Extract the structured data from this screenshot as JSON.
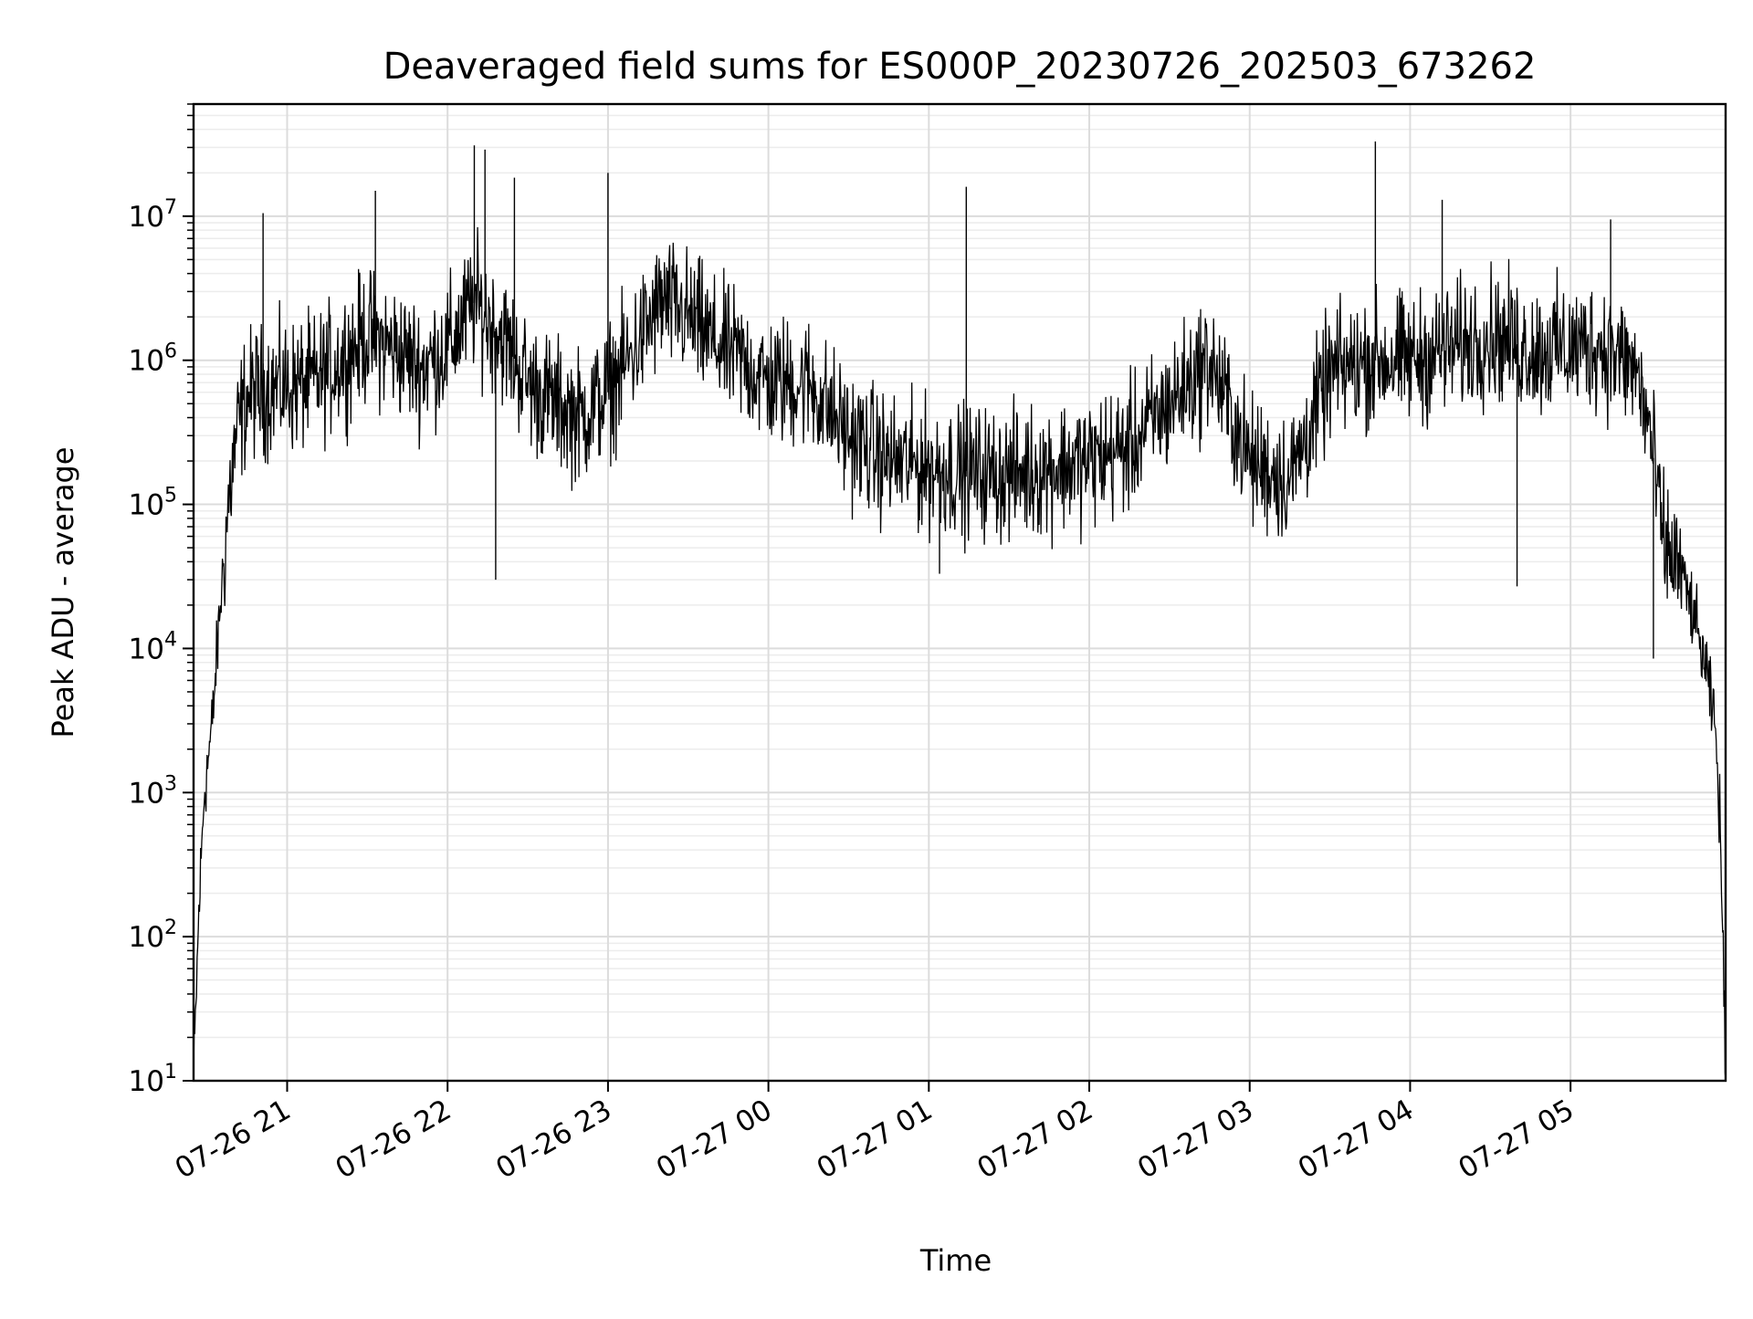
{
  "chart_data": {
    "type": "line",
    "title": "Deaveraged field sums for ES000P_20230726_202503_673262",
    "xlabel": "Time",
    "ylabel": "Peak ADU - average",
    "y_scale": "log",
    "ylim": [
      10,
      60000000
    ],
    "xlim": [
      "2023-07-26 20:25",
      "2023-07-27 05:58"
    ],
    "y_ticks": [
      {
        "value": 10,
        "base": "10",
        "exp": "1"
      },
      {
        "value": 100,
        "base": "10",
        "exp": "2"
      },
      {
        "value": 1000,
        "base": "10",
        "exp": "3"
      },
      {
        "value": 10000,
        "base": "10",
        "exp": "4"
      },
      {
        "value": 100000,
        "base": "10",
        "exp": "5"
      },
      {
        "value": 1000000,
        "base": "10",
        "exp": "6"
      },
      {
        "value": 10000000,
        "base": "10",
        "exp": "7"
      }
    ],
    "x_ticks": [
      {
        "value": "2023-07-26 21:00",
        "label": "07-26 21"
      },
      {
        "value": "2023-07-26 22:00",
        "label": "07-26 22"
      },
      {
        "value": "2023-07-26 23:00",
        "label": "07-26 23"
      },
      {
        "value": "2023-07-27 00:00",
        "label": "07-27 00"
      },
      {
        "value": "2023-07-27 01:00",
        "label": "07-27 01"
      },
      {
        "value": "2023-07-27 02:00",
        "label": "07-27 02"
      },
      {
        "value": "2023-07-27 03:00",
        "label": "07-27 03"
      },
      {
        "value": "2023-07-27 04:00",
        "label": "07-27 04"
      },
      {
        "value": "2023-07-27 05:00",
        "label": "07-27 05"
      }
    ],
    "grid": true,
    "legend": "none",
    "series": [
      {
        "x": [
          "2023-07-26 20:25",
          "2023-07-26 20:27",
          "2023-07-26 20:29",
          "2023-07-26 20:32",
          "2023-07-26 20:35",
          "2023-07-26 20:38",
          "2023-07-26 20:41",
          "2023-07-26 20:44",
          "2023-07-26 20:47",
          "2023-07-26 20:50",
          "2023-07-26 20:55",
          "2023-07-26 21:00",
          "2023-07-26 21:10",
          "2023-07-26 21:20",
          "2023-07-26 21:30",
          "2023-07-26 21:40",
          "2023-07-26 21:50",
          "2023-07-26 22:00",
          "2023-07-26 22:10",
          "2023-07-26 22:20",
          "2023-07-26 22:30",
          "2023-07-26 22:40",
          "2023-07-26 22:50",
          "2023-07-26 23:00",
          "2023-07-26 23:10",
          "2023-07-26 23:20",
          "2023-07-26 23:30",
          "2023-07-26 23:40",
          "2023-07-26 23:50",
          "2023-07-27 00:00",
          "2023-07-27 00:15",
          "2023-07-27 00:30",
          "2023-07-27 00:45",
          "2023-07-27 01:00",
          "2023-07-27 01:15",
          "2023-07-27 01:30",
          "2023-07-27 01:45",
          "2023-07-27 02:00",
          "2023-07-27 02:15",
          "2023-07-27 02:30",
          "2023-07-27 02:45",
          "2023-07-27 03:00",
          "2023-07-27 03:15",
          "2023-07-27 03:30",
          "2023-07-27 03:45",
          "2023-07-27 04:00",
          "2023-07-27 04:15",
          "2023-07-27 04:30",
          "2023-07-27 04:45",
          "2023-07-27 05:00",
          "2023-07-27 05:10",
          "2023-07-27 05:20",
          "2023-07-27 05:25",
          "2023-07-27 05:30",
          "2023-07-27 05:35",
          "2023-07-27 05:40",
          "2023-07-27 05:45",
          "2023-07-27 05:50",
          "2023-07-27 05:54",
          "2023-07-27 05:56",
          "2023-07-27 05:58"
        ],
        "y": [
          10,
          150,
          1000,
          3000,
          20000,
          100000,
          300000,
          500000,
          600000,
          600000,
          650000,
          650000,
          700000,
          1000000,
          1500000,
          1200000,
          900000,
          1200000,
          2500000,
          1500000,
          700000,
          500000,
          400000,
          600000,
          1200000,
          2500000,
          2000000,
          1300000,
          1000000,
          700000,
          700000,
          300000,
          200000,
          180000,
          170000,
          160000,
          180000,
          200000,
          250000,
          500000,
          1000000,
          200000,
          150000,
          800000,
          1000000,
          1000000,
          1200000,
          1500000,
          1200000,
          1200000,
          1300000,
          1000000,
          800000,
          300000,
          50000,
          40000,
          20000,
          8000,
          3000,
          600,
          10
        ],
        "spikes": [
          {
            "x": "2023-07-26 20:51",
            "y": 10500000
          },
          {
            "x": "2023-07-26 21:33",
            "y": 15000000
          },
          {
            "x": "2023-07-26 22:10",
            "y": 31000000
          },
          {
            "x": "2023-07-26 22:14",
            "y": 29000000
          },
          {
            "x": "2023-07-26 22:25",
            "y": 18500000
          },
          {
            "x": "2023-07-26 23:00",
            "y": 20000000
          },
          {
            "x": "2023-07-27 01:14",
            "y": 16000000
          },
          {
            "x": "2023-07-27 03:47",
            "y": 33000000
          },
          {
            "x": "2023-07-27 04:12",
            "y": 13000000
          },
          {
            "x": "2023-07-27 05:15",
            "y": 9500000
          },
          {
            "x": "2023-07-26 22:18",
            "y": 30000
          },
          {
            "x": "2023-07-27 01:04",
            "y": 33000
          },
          {
            "x": "2023-07-27 04:40",
            "y": 27000
          },
          {
            "x": "2023-07-27 05:31",
            "y": 8500
          }
        ],
        "color": "#000000"
      }
    ]
  }
}
